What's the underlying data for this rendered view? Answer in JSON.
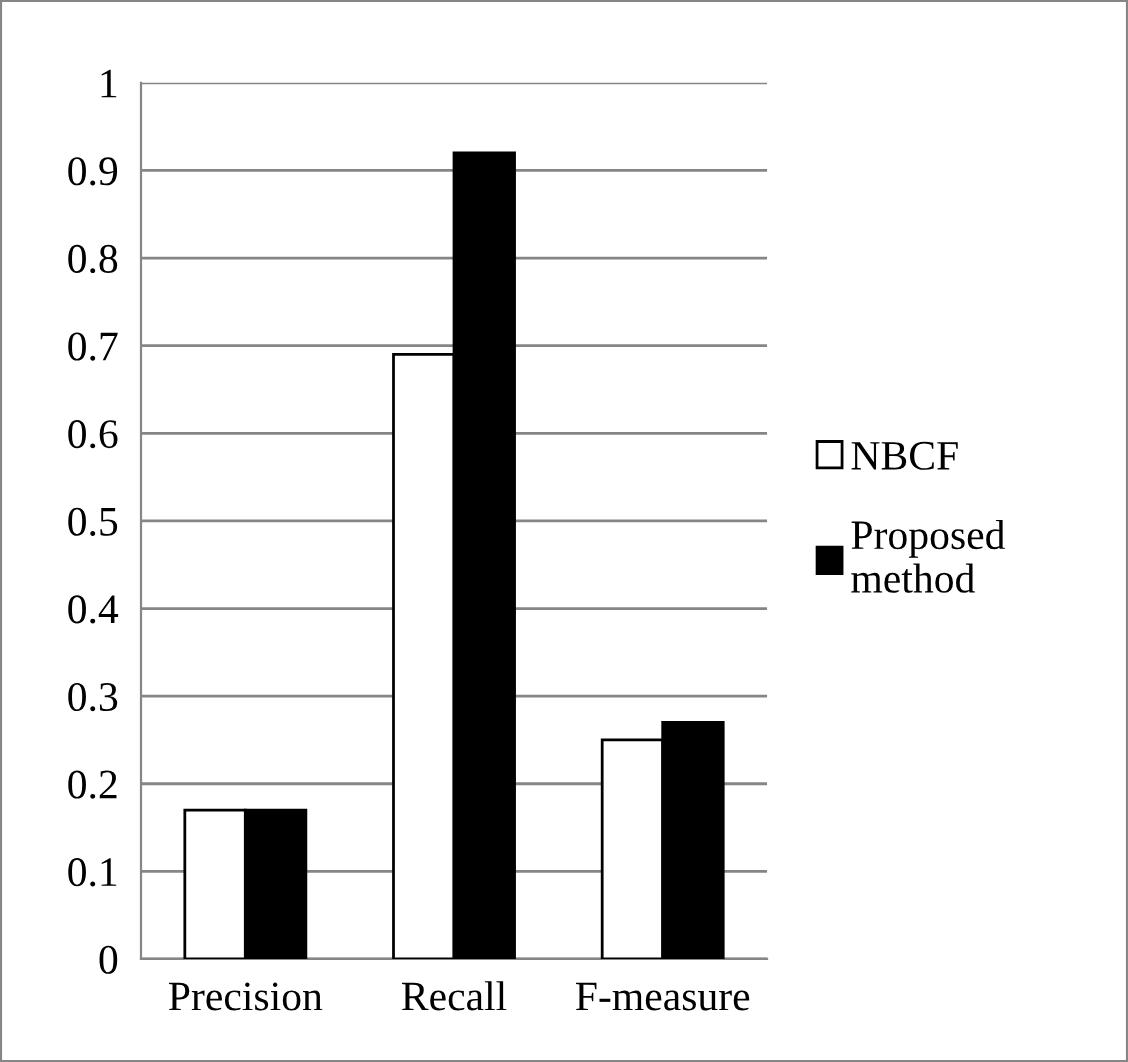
{
  "chart_data": {
    "type": "bar",
    "categories": [
      "Precision",
      "Recall",
      "F-measure"
    ],
    "series": [
      {
        "name": "NBCF",
        "color": "#ffffff",
        "values": [
          0.17,
          0.69,
          0.25
        ]
      },
      {
        "name": "Proposed\nmethod",
        "color": "#000000",
        "values": [
          0.17,
          0.92,
          0.27
        ]
      }
    ],
    "ylim": [
      0,
      1
    ],
    "yticks": [
      0,
      0.1,
      0.2,
      0.3,
      0.4,
      0.5,
      0.6,
      0.7,
      0.8,
      0.9,
      1
    ],
    "grid": "y",
    "legend": "right"
  }
}
